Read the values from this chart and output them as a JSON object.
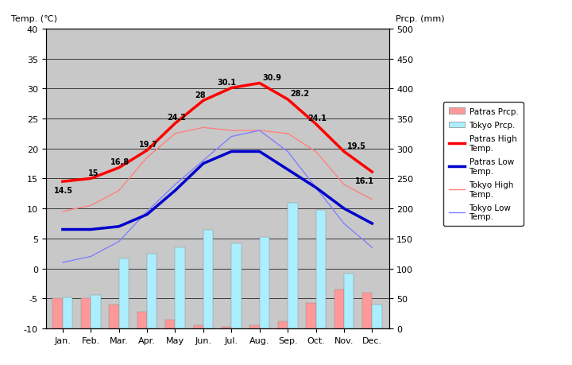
{
  "months": [
    "Jan.",
    "Feb.",
    "Mar.",
    "Apr.",
    "May",
    "Jun.",
    "Jul.",
    "Aug.",
    "Sep.",
    "Oct.",
    "Nov.",
    "Dec."
  ],
  "month_x": [
    0,
    1,
    2,
    3,
    4,
    5,
    6,
    7,
    8,
    9,
    10,
    11
  ],
  "patras_high": [
    14.5,
    15.0,
    16.8,
    19.7,
    24.2,
    28.0,
    30.1,
    30.9,
    28.2,
    24.1,
    19.5,
    16.1
  ],
  "patras_low": [
    6.5,
    6.5,
    7.0,
    9.0,
    13.0,
    17.5,
    19.5,
    19.5,
    16.5,
    13.5,
    10.0,
    7.5
  ],
  "tokyo_high": [
    9.5,
    10.5,
    13.0,
    18.5,
    22.5,
    23.5,
    23.0,
    23.0,
    22.5,
    19.5,
    14.0,
    11.5
  ],
  "tokyo_low": [
    1.0,
    2.0,
    4.5,
    9.5,
    14.0,
    18.0,
    22.0,
    23.0,
    19.5,
    13.5,
    7.5,
    3.5
  ],
  "patras_prcp_mm": [
    50,
    50,
    40,
    28,
    15,
    5,
    3,
    5,
    12,
    42,
    65,
    60
  ],
  "tokyo_prcp_mm": [
    52,
    56,
    117,
    125,
    135,
    165,
    142,
    152,
    210,
    197,
    92,
    40
  ],
  "bar_width": 0.35,
  "patras_high_color": "#FF0000",
  "patras_low_color": "#0000CC",
  "tokyo_high_color": "#FF8080",
  "tokyo_low_color": "#8080FF",
  "patras_prcp_color": "#FF9999",
  "tokyo_prcp_color": "#AAEEFF",
  "plot_bg_color": "#C8C8C8",
  "temp_ylim": [
    -10,
    40
  ],
  "prcp_ylim": [
    0,
    500
  ],
  "temp_yticks": [
    -10,
    -5,
    0,
    5,
    10,
    15,
    20,
    25,
    30,
    35,
    40
  ],
  "prcp_yticks": [
    0,
    50,
    100,
    150,
    200,
    250,
    300,
    350,
    400,
    450,
    500
  ],
  "left_ylabel": "Temp. (℃)",
  "right_ylabel": "Prcp. (mm)",
  "temp_min": -10,
  "temp_max": 40,
  "prcp_min": 0,
  "prcp_max": 500
}
